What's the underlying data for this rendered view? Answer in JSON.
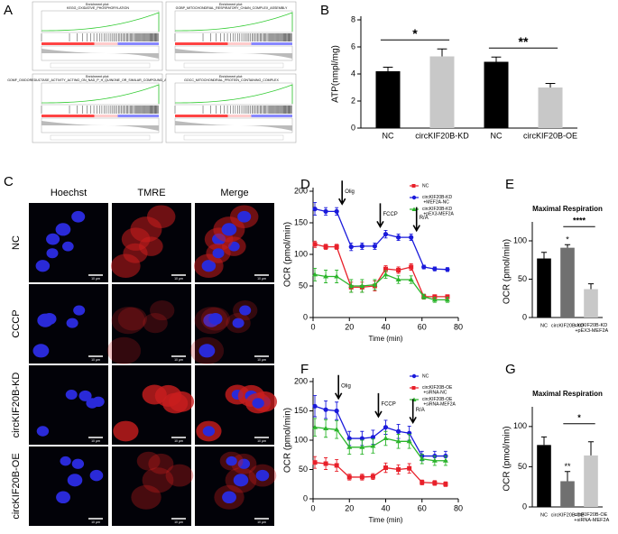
{
  "panel_labels": [
    "A",
    "B",
    "C",
    "D",
    "E",
    "F",
    "G"
  ],
  "gsea_plots": [
    {
      "title": "Enrichment plot: KEGG_OXIDATIVE_PHOSPHORYLATION"
    },
    {
      "title": "Enrichment plot: GOBP_MITOCHONDRIAL_RESPIRATORY_CHAIN_COMPLEX_ASSEMBLY"
    },
    {
      "title": "Enrichment plot: GOMF_OXIDOREDUCTASE_ACTIVITY_ACTING_ON_NAD_P_H_QUINONE_OR_SIMILAR_COMPOUND_AS_ACCEPTOR"
    },
    {
      "title": "Enrichment plot: GOCC_MITOCHONDRIAL_PROTEIN_CONTAINING_COMPLEX"
    }
  ],
  "imaging": {
    "columns": [
      "Hoechst",
      "TMRE",
      "Merge"
    ],
    "rows": [
      "NC",
      "CCCP",
      "circKIF20B-KD",
      "circKIF20B-OE"
    ],
    "scale_bar": "10 μm"
  },
  "chart_data": [
    {
      "type": "bar",
      "ylabel": "ATP(nmpl/mg)",
      "categories": [
        "NC",
        "circKIF20B-KD",
        "NC",
        "circKIF20B-OE"
      ],
      "values": [
        4.2,
        5.3,
        4.9,
        3.0
      ],
      "errors": [
        0.3,
        0.55,
        0.35,
        0.3
      ],
      "colors": [
        "#000000",
        "#c8c8c8",
        "#000000",
        "#c8c8c8"
      ],
      "ylim": [
        0,
        8
      ],
      "yticks": [
        0,
        2,
        4,
        6,
        8
      ],
      "annotations": [
        {
          "text": "*",
          "bars": [
            0,
            1
          ]
        },
        {
          "text": "**",
          "bars": [
            2,
            3
          ]
        }
      ]
    },
    {
      "type": "line",
      "ylabel": "OCR (pmol/min)",
      "xlabel": "Time (min)",
      "x": [
        1,
        7,
        13,
        21,
        27,
        34,
        40,
        47,
        54,
        61,
        67,
        74
      ],
      "series": [
        {
          "name": "NC",
          "color": "#e8202a",
          "marker": "square",
          "values": [
            116,
            112,
            112,
            48,
            48,
            50,
            77,
            75,
            80,
            33,
            33,
            33
          ],
          "errors": [
            5,
            4,
            4,
            8,
            8,
            8,
            5,
            5,
            5,
            3,
            3,
            3
          ]
        },
        {
          "name": "circKIF20B-KD +MEF2A-NC",
          "color": "#1a1adb",
          "marker": "circle",
          "values": [
            172,
            168,
            168,
            112,
            113,
            113,
            132,
            127,
            127,
            80,
            77,
            76
          ],
          "errors": [
            10,
            6,
            6,
            6,
            5,
            5,
            6,
            5,
            5,
            3,
            3,
            3
          ]
        },
        {
          "name": "circKIF20B-KD +pEX3-MEF2A",
          "color": "#2bb52b",
          "marker": "triangle",
          "values": [
            68,
            65,
            65,
            50,
            50,
            52,
            68,
            60,
            60,
            33,
            28,
            28
          ],
          "errors": [
            10,
            10,
            10,
            10,
            10,
            8,
            6,
            6,
            6,
            4,
            4,
            4
          ]
        }
      ],
      "xlim": [
        0,
        80
      ],
      "xticks": [
        0,
        20,
        40,
        60,
        80
      ],
      "ylim": [
        0,
        200
      ],
      "yticks": [
        0,
        50,
        100,
        150,
        200
      ],
      "legend": "upper right",
      "arrows": [
        {
          "text": "Olig",
          "x": 16
        },
        {
          "text": "FCCP",
          "x": 37
        },
        {
          "text": "R/A",
          "x": 57
        }
      ]
    },
    {
      "type": "bar",
      "title": "Maximal Respiration",
      "ylabel": "OCR (pmol/min)",
      "categories": [
        "NC",
        "circKIF20B-KD",
        "circKIF20B-KD +pEX3-MEF2A"
      ],
      "values": [
        77,
        91,
        37
      ],
      "errors": [
        8,
        4,
        7
      ],
      "colors": [
        "#000000",
        "#707070",
        "#c8c8c8"
      ],
      "ylim": [
        0,
        120
      ],
      "yticks": [
        0,
        50,
        100
      ],
      "annotations": [
        {
          "text": "*",
          "bars": [
            1
          ]
        },
        {
          "text": "****",
          "bars": [
            1,
            2
          ]
        }
      ]
    },
    {
      "type": "line",
      "ylabel": "OCR (pmol/min)",
      "xlabel": "Time (min)",
      "x": [
        1,
        7,
        13,
        20,
        27,
        33,
        40,
        47,
        53,
        60,
        67,
        73
      ],
      "series": [
        {
          "name": "NC",
          "color": "#1a1adb",
          "marker": "circle",
          "values": [
            158,
            152,
            150,
            103,
            103,
            105,
            122,
            115,
            112,
            73,
            73,
            73
          ],
          "errors": [
            18,
            15,
            15,
            12,
            12,
            12,
            12,
            12,
            12,
            8,
            8,
            8
          ]
        },
        {
          "name": "circKIF20B-OE +siRNA-NC",
          "color": "#e8202a",
          "marker": "square",
          "values": [
            62,
            60,
            57,
            37,
            37,
            38,
            53,
            50,
            52,
            28,
            27,
            25
          ],
          "errors": [
            10,
            10,
            10,
            5,
            5,
            5,
            8,
            8,
            8,
            4,
            4,
            4
          ]
        },
        {
          "name": "circKIF20B-OE +siRNA-MEF2A",
          "color": "#2bb52b",
          "marker": "triangle",
          "values": [
            122,
            120,
            118,
            88,
            88,
            90,
            103,
            98,
            98,
            68,
            65,
            65
          ],
          "errors": [
            15,
            15,
            15,
            12,
            12,
            12,
            12,
            12,
            12,
            8,
            8,
            8
          ]
        }
      ],
      "xlim": [
        0,
        80
      ],
      "xticks": [
        0,
        20,
        40,
        60,
        80
      ],
      "ylim": [
        0,
        200
      ],
      "yticks": [
        0,
        50,
        100,
        150,
        200
      ],
      "legend": "upper right",
      "arrows": [
        {
          "text": "Olig",
          "x": 14
        },
        {
          "text": "FCCP",
          "x": 36
        },
        {
          "text": "R/A",
          "x": 55
        }
      ]
    },
    {
      "type": "bar",
      "title": "Maximal Respiration",
      "ylabel": "OCR (pmol/min)",
      "categories": [
        "NC",
        "circKIF20B-OE",
        "circKIF20B-OE +siRNA-MEF2A"
      ],
      "values": [
        77,
        32,
        64
      ],
      "errors": [
        10,
        12,
        17
      ],
      "colors": [
        "#000000",
        "#707070",
        "#c8c8c8"
      ],
      "ylim": [
        0,
        120
      ],
      "yticks": [
        0,
        50,
        100
      ],
      "annotations": [
        {
          "text": "**",
          "bars": [
            1
          ]
        },
        {
          "text": "*",
          "bars": [
            1,
            2
          ]
        }
      ]
    }
  ]
}
